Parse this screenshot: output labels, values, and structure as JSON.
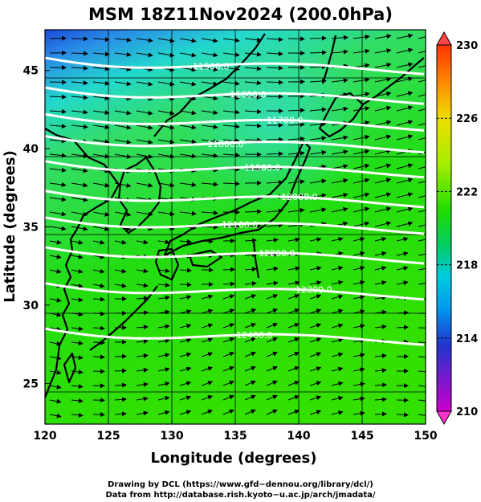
{
  "title": "MSM 18Z11Nov2024 (200.0hPa)",
  "axes": {
    "xlabel": "Longitude (degrees)",
    "ylabel": "Latitude  (degrees)",
    "xticks": [
      "120",
      "125",
      "130",
      "135",
      "140",
      "145",
      "150"
    ],
    "yticks": [
      "25",
      "30",
      "35",
      "40",
      "45"
    ],
    "xlim": [
      120,
      150
    ],
    "ylim": [
      22.4,
      47.6
    ]
  },
  "colorbar": {
    "ticks": [
      "230",
      "226",
      "222",
      "218",
      "214",
      "210"
    ],
    "min": 210,
    "max": 230,
    "colors": [
      "#cc00cc",
      "#2233cc",
      "#00aaee",
      "#00cc66",
      "#22dd00",
      "#aaee00",
      "#eedd00",
      "#ff8800",
      "#ff3300"
    ]
  },
  "contours": [
    {
      "label": "11500.0",
      "lat": 45.8
    },
    {
      "label": "11600.0",
      "lat": 43.9
    },
    {
      "label": "11700.0",
      "lat": 42.2
    },
    {
      "label": "11800.0",
      "lat": 40.8
    },
    {
      "label": "11900.0",
      "lat": 39.2
    },
    {
      "label": "12000.0",
      "lat": 37.3
    },
    {
      "label": "12100.0",
      "lat": 35.6
    },
    {
      "label": "12200.0",
      "lat": 33.7
    },
    {
      "label": "12300.0",
      "lat": 31.4
    },
    {
      "label": "12400.0",
      "lat": 28.5
    }
  ],
  "credits": {
    "line1": "Drawing by DCL (https://www.gfd−dennou.org/library/dcl/)",
    "line2": "Data from http://database.rish.kyoto−u.ac.jp/arch/jmadata/"
  }
}
